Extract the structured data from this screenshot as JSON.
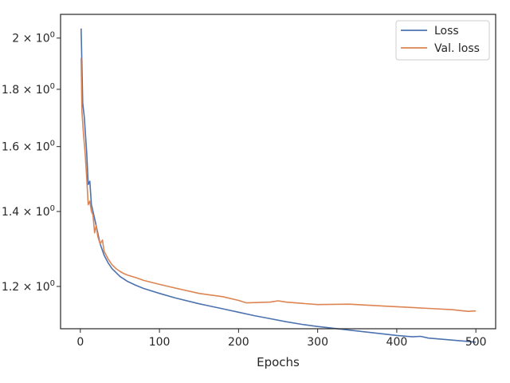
{
  "chart_data": {
    "type": "line",
    "xlabel": "Epochs",
    "ylabel": "",
    "xlim": [
      -25,
      525
    ],
    "ylim": [
      1.1,
      2.1
    ],
    "yscale": "log",
    "grid": false,
    "legend_position": "top-right",
    "x_ticks": [
      0,
      100,
      200,
      300,
      400,
      500
    ],
    "y_ticks": [
      {
        "value": 1.2,
        "base": "1.2 × 10",
        "exp": "0"
      },
      {
        "value": 1.4,
        "base": "1.4 × 10",
        "exp": "0"
      },
      {
        "value": 1.6,
        "base": "1.6 × 10",
        "exp": "0"
      },
      {
        "value": 1.8,
        "base": "1.8 × 10",
        "exp": "0"
      },
      {
        "value": 2.0,
        "base": "2 × 10",
        "exp": "0"
      }
    ],
    "series": [
      {
        "name": "Loss",
        "color": "#4c72b0",
        "x": [
          1,
          3,
          5,
          8,
          10,
          12,
          14,
          16,
          18,
          20,
          25,
          30,
          35,
          40,
          50,
          60,
          70,
          80,
          100,
          120,
          150,
          180,
          200,
          220,
          240,
          260,
          280,
          300,
          350,
          400,
          420,
          430,
          440,
          480,
          500
        ],
        "y": [
          2.04,
          1.75,
          1.7,
          1.58,
          1.48,
          1.49,
          1.42,
          1.4,
          1.38,
          1.36,
          1.31,
          1.28,
          1.26,
          1.245,
          1.225,
          1.212,
          1.203,
          1.195,
          1.183,
          1.172,
          1.158,
          1.146,
          1.138,
          1.13,
          1.123,
          1.116,
          1.11,
          1.105,
          1.095,
          1.085,
          1.082,
          1.083,
          1.079,
          1.073,
          1.07
        ]
      },
      {
        "name": "Val. loss",
        "color": "#dd8452",
        "x": [
          1,
          2,
          4,
          6,
          8,
          10,
          12,
          14,
          16,
          18,
          20,
          22,
          25,
          28,
          30,
          35,
          40,
          45,
          50,
          55,
          60,
          70,
          80,
          100,
          120,
          150,
          180,
          200,
          210,
          240,
          250,
          260,
          280,
          300,
          340,
          360,
          400,
          420,
          440,
          470,
          480,
          490,
          500
        ],
        "y": [
          1.92,
          1.72,
          1.64,
          1.58,
          1.5,
          1.42,
          1.43,
          1.4,
          1.39,
          1.34,
          1.36,
          1.33,
          1.31,
          1.32,
          1.29,
          1.27,
          1.255,
          1.245,
          1.238,
          1.232,
          1.228,
          1.222,
          1.215,
          1.205,
          1.196,
          1.183,
          1.175,
          1.166,
          1.16,
          1.162,
          1.165,
          1.162,
          1.159,
          1.156,
          1.157,
          1.155,
          1.151,
          1.149,
          1.147,
          1.144,
          1.142,
          1.14,
          1.141
        ]
      }
    ]
  }
}
